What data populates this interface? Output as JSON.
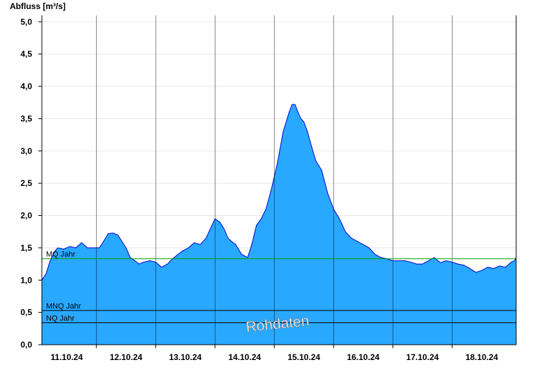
{
  "chart_data": {
    "type": "area",
    "ylabel": "Abfluss [m³/s]",
    "ylim": [
      0,
      5.1
    ],
    "yticks": [
      0,
      0.5,
      1.0,
      1.5,
      2.0,
      2.5,
      3.0,
      3.5,
      4.0,
      4.5,
      5.0
    ],
    "ytick_labels": [
      "0,0",
      "0,5",
      "1,0",
      "1,5",
      "2,0",
      "2,5",
      "3,0",
      "3,5",
      "4,0",
      "4,5",
      "5,0"
    ],
    "xlim": [
      10.58,
      18.58
    ],
    "xticks": [
      11,
      12,
      13,
      14,
      15,
      16,
      17,
      18
    ],
    "xtick_labels": [
      "11.10.24",
      "12.10.24",
      "13.10.24",
      "14.10.24",
      "15.10.24",
      "16.10.24",
      "17.10.24",
      "18.10.24"
    ],
    "day_boundaries": [
      11.5,
      12.5,
      13.5,
      14.5,
      15.5,
      16.5,
      17.5
    ],
    "grid": true,
    "series": [
      {
        "x": [
          10.58,
          10.65,
          10.72,
          10.8,
          10.85,
          10.95,
          11.05,
          11.15,
          11.25,
          11.35,
          11.45,
          11.55,
          11.62,
          11.7,
          11.78,
          11.86,
          11.93,
          12.0,
          12.07,
          12.15,
          12.22,
          12.3,
          12.4,
          12.5,
          12.6,
          12.7,
          12.75,
          12.85,
          12.95,
          13.05,
          13.15,
          13.25,
          13.35,
          13.45,
          13.5,
          13.58,
          13.65,
          13.72,
          13.78,
          13.85,
          13.95,
          14.05,
          14.12,
          14.2,
          14.28,
          14.36,
          14.45,
          14.55,
          14.65,
          14.75,
          14.8,
          14.85,
          14.9,
          14.95,
          15.0,
          15.06,
          15.12,
          15.2,
          15.3,
          15.4,
          15.5,
          15.6,
          15.7,
          15.8,
          15.9,
          16.0,
          16.1,
          16.2,
          16.3,
          16.4,
          16.5,
          16.6,
          16.7,
          16.8,
          16.9,
          17.0,
          17.1,
          17.2,
          17.3,
          17.4,
          17.5,
          17.6,
          17.7,
          17.8,
          17.9,
          18.0,
          18.1,
          18.2,
          18.3,
          18.4,
          18.5,
          18.55,
          18.58
        ],
        "values": [
          1.0,
          1.1,
          1.3,
          1.45,
          1.5,
          1.48,
          1.52,
          1.5,
          1.58,
          1.5,
          1.5,
          1.5,
          1.6,
          1.72,
          1.73,
          1.7,
          1.6,
          1.5,
          1.35,
          1.3,
          1.25,
          1.28,
          1.3,
          1.28,
          1.2,
          1.25,
          1.3,
          1.38,
          1.45,
          1.5,
          1.58,
          1.55,
          1.65,
          1.85,
          1.95,
          1.9,
          1.8,
          1.65,
          1.6,
          1.55,
          1.4,
          1.35,
          1.55,
          1.85,
          1.95,
          2.1,
          2.4,
          2.8,
          3.3,
          3.6,
          3.72,
          3.72,
          3.6,
          3.5,
          3.45,
          3.3,
          3.1,
          2.85,
          2.7,
          2.35,
          2.1,
          1.95,
          1.75,
          1.65,
          1.6,
          1.55,
          1.5,
          1.4,
          1.35,
          1.33,
          1.3,
          1.3,
          1.3,
          1.28,
          1.25,
          1.25,
          1.3,
          1.35,
          1.27,
          1.3,
          1.28,
          1.25,
          1.23,
          1.18,
          1.12,
          1.15,
          1.2,
          1.18,
          1.22,
          1.2,
          1.28,
          1.3,
          1.35
        ]
      }
    ],
    "reference_lines": [
      {
        "label": "MQ Jahr",
        "value": 1.33,
        "color": "#00a000"
      },
      {
        "label": "MNQ Jahr",
        "value": 0.53,
        "color": "#000000"
      },
      {
        "label": "NQ Jahr",
        "value": 0.34,
        "color": "#000000"
      }
    ],
    "annotation": "Rohdaten",
    "colors": {
      "area_fill": "#29a8ff",
      "area_line": "#0000cc",
      "grid": "#e8e8e8",
      "axis": "#000000"
    }
  }
}
